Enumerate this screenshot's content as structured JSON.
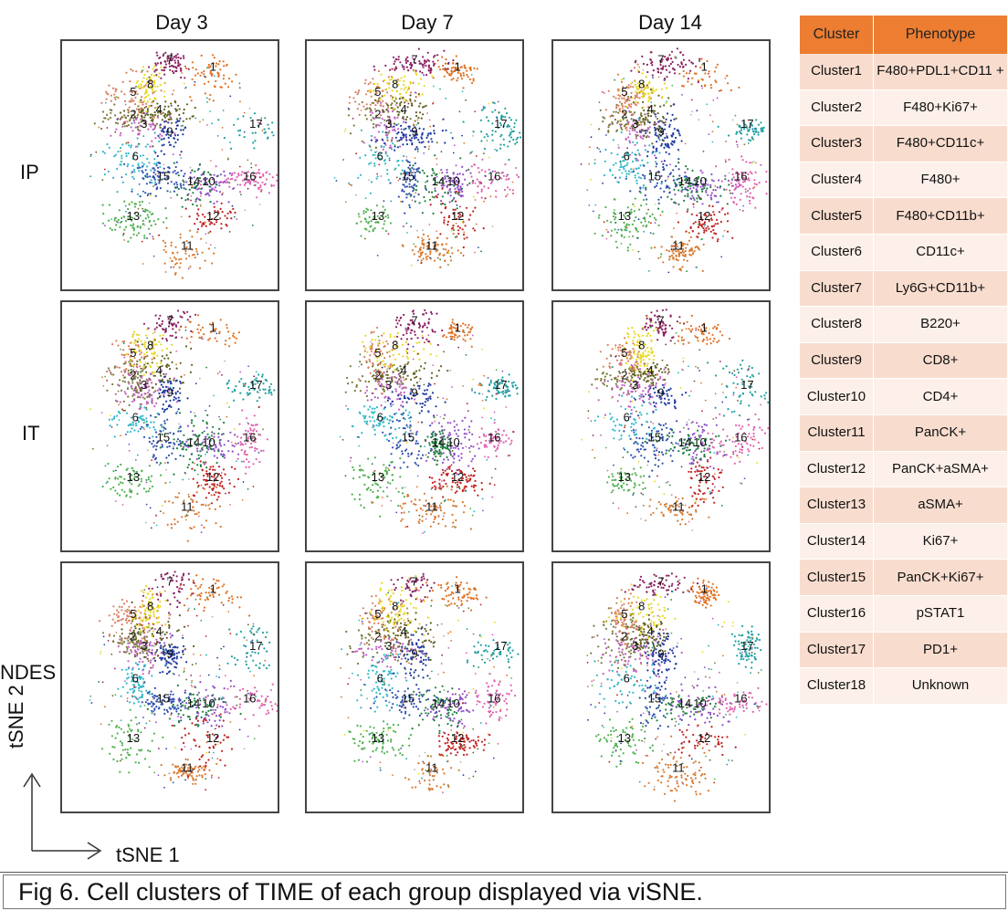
{
  "figure": {
    "caption": "Fig 6. Cell clusters of TIME of each group displayed via viSNE.",
    "x_axis_label": "tSNE 1",
    "y_axis_label": "tSNE 2"
  },
  "columns": [
    "Day 3",
    "Day 7",
    "Day 14"
  ],
  "rows": [
    "IP",
    "IT",
    "NDES"
  ],
  "legend_table": {
    "headers": [
      "Cluster",
      "Phenotype"
    ],
    "header_color": "#ec7d31",
    "row_colors": [
      "#f8ddcf",
      "#fdf0ea"
    ],
    "rows": [
      {
        "cluster": "Cluster1",
        "phenotype": "F480+PDL1+CD11 +"
      },
      {
        "cluster": "Cluster2",
        "phenotype": "F480+Ki67+"
      },
      {
        "cluster": "Cluster3",
        "phenotype": "F480+CD11c+"
      },
      {
        "cluster": "Cluster4",
        "phenotype": "F480+"
      },
      {
        "cluster": "Cluster5",
        "phenotype": "F480+CD11b+"
      },
      {
        "cluster": "Cluster6",
        "phenotype": "CD11c+"
      },
      {
        "cluster": "Cluster7",
        "phenotype": "Ly6G+CD11b+"
      },
      {
        "cluster": "Cluster8",
        "phenotype": "B220+"
      },
      {
        "cluster": "Cluster9",
        "phenotype": "CD8+"
      },
      {
        "cluster": "Cluster10",
        "phenotype": "CD4+"
      },
      {
        "cluster": "Cluster11",
        "phenotype": "PanCK+"
      },
      {
        "cluster": "Cluster12",
        "phenotype": "PanCK+aSMA+"
      },
      {
        "cluster": "Cluster13",
        "phenotype": "aSMA+"
      },
      {
        "cluster": "Cluster14",
        "phenotype": "Ki67+"
      },
      {
        "cluster": "Cluster15",
        "phenotype": "PanCK+Ki67+"
      },
      {
        "cluster": "Cluster16",
        "phenotype": "pSTAT1"
      },
      {
        "cluster": "Cluster17",
        "phenotype": "PD1+"
      },
      {
        "cluster": "Cluster18",
        "phenotype": "Unknown"
      }
    ]
  },
  "chart_data": {
    "type": "scatter",
    "description_type": "viSNE cluster map grid",
    "cluster_labels": [
      "1",
      "2",
      "3",
      "4",
      "5",
      "6",
      "7",
      "8",
      "9",
      "10",
      "11",
      "12",
      "13",
      "14",
      "15",
      "16",
      "17"
    ],
    "cluster_colors": {
      "1": "#e07020",
      "2": "#7a7a3a",
      "3": "#c060c0",
      "4": "#606020",
      "5": "#d88060",
      "6": "#30b8c8",
      "7": "#8a2060",
      "8": "#e8d820",
      "9": "#1e3aa0",
      "10": "#9050c8",
      "11": "#d87a30",
      "12": "#c02020",
      "13": "#50b050",
      "14": "#208040",
      "15": "#3050b0",
      "16": "#e060b0",
      "17": "#20a0a0",
      "18": "#b0b0b0"
    },
    "label_positions_note": "cluster number labels appear in each panel",
    "panels": [
      {
        "row": "IP",
        "col": "Day 3"
      },
      {
        "row": "IP",
        "col": "Day 7"
      },
      {
        "row": "IP",
        "col": "Day 14"
      },
      {
        "row": "IT",
        "col": "Day 3"
      },
      {
        "row": "IT",
        "col": "Day 7"
      },
      {
        "row": "IT",
        "col": "Day 14"
      },
      {
        "row": "NDES",
        "col": "Day 3"
      },
      {
        "row": "NDES",
        "col": "Day 7"
      },
      {
        "row": "NDES",
        "col": "Day 14"
      }
    ]
  }
}
